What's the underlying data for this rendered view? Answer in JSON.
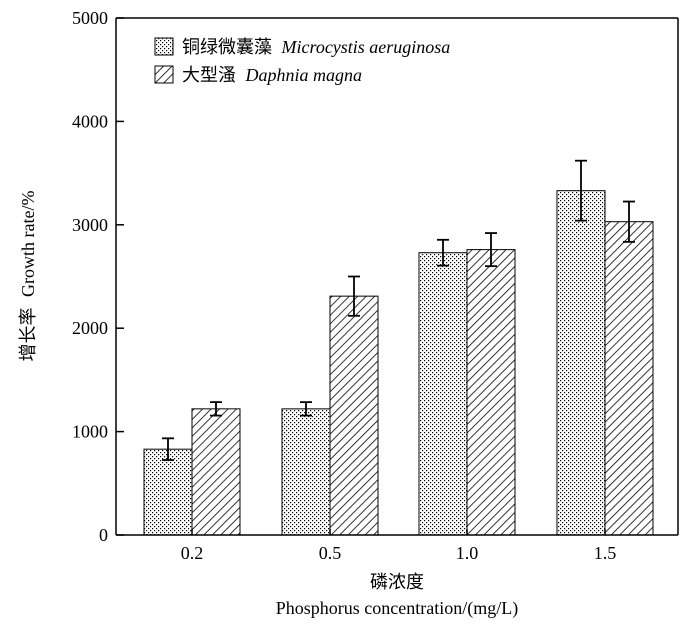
{
  "chart_data": {
    "type": "bar",
    "title": "",
    "xlabel_cn": "磷浓度",
    "xlabel_en": "Phosphorus concentration/(mg/L)",
    "ylabel_cn": "增长率",
    "ylabel_en": "Growth rate/%",
    "categories": [
      "0.2",
      "0.5",
      "1.0",
      "1.5"
    ],
    "ylim": [
      0,
      5000
    ],
    "yticks": [
      0,
      1000,
      2000,
      3000,
      4000,
      5000
    ],
    "ytick_labels": [
      "0",
      "1000",
      "2000",
      "3000",
      "4000",
      "5000"
    ],
    "grid": false,
    "legend_position": "top-left",
    "series": [
      {
        "name_cn": "铜绿微囊藻",
        "name_en": "Microcystis aeruginosa",
        "pattern": "dots",
        "values": [
          830,
          1220,
          2730,
          3330
        ],
        "errors": [
          105,
          65,
          125,
          290
        ]
      },
      {
        "name_cn": "大型溞",
        "name_en": "Daphnia magna",
        "pattern": "diagonal-hatch",
        "values": [
          1220,
          2310,
          2760,
          3030
        ],
        "errors": [
          65,
          190,
          160,
          195
        ]
      }
    ]
  }
}
